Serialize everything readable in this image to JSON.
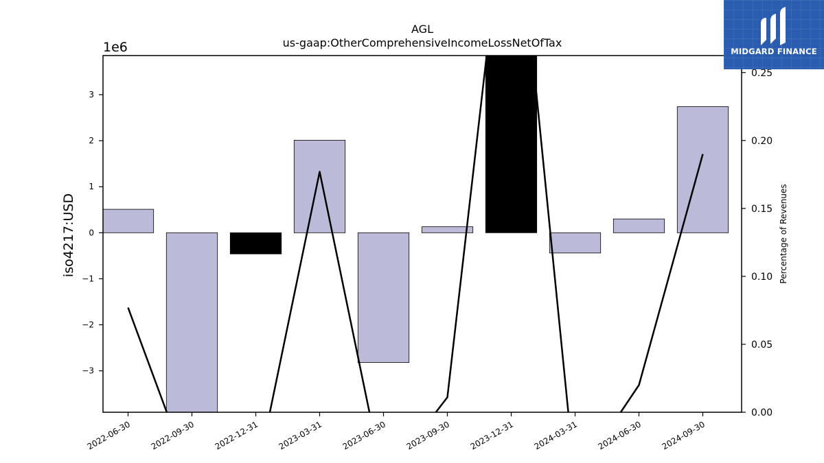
{
  "logo": {
    "text": "MIDGARD FINANCE"
  },
  "chart_data": {
    "type": "bar",
    "title": "AGL",
    "subtitle": "us-gaap:OtherComprehensiveIncomeLossNetOfTax",
    "ylabel": "iso4217:USD",
    "y2label": "Percentage of Revenues",
    "offset_text": "1e6",
    "categories": [
      "2022-06-30",
      "2022-09-30",
      "2022-12-31",
      "2023-03-31",
      "2023-06-30",
      "2023-09-30",
      "2023-12-31",
      "2024-03-31",
      "2024-06-30",
      "2024-09-30"
    ],
    "series": [
      {
        "values": [
          510000,
          -4500000,
          -460000,
          2010000,
          -2820000,
          130000,
          4200000,
          -440000,
          300000,
          2740000
        ],
        "colors": [
          "#bcbad9",
          "#bcbad9",
          "#000000",
          "#bcbad9",
          "#bcbad9",
          "#bcbad9",
          "#000000",
          "#bcbad9",
          "#bcbad9",
          "#bcbad9"
        ]
      },
      {
        "type": "line",
        "axis": "right",
        "values": [
          0.077,
          -0.05,
          -0.05,
          0.177,
          -0.05,
          0.011,
          0.42,
          -0.05,
          0.02,
          0.19
        ]
      }
    ],
    "ylim": [
      -3900000,
      3850000
    ],
    "y2lim": [
      0.0,
      0.2625
    ],
    "yticks": [
      -3000000,
      -2000000,
      -1000000,
      0,
      1000000,
      2000000,
      3000000
    ],
    "ytick_labels": [
      "−3",
      "−2",
      "−1",
      "0",
      "1",
      "2",
      "3"
    ],
    "y2ticks": [
      0.0,
      0.05,
      0.1,
      0.15,
      0.2,
      0.25
    ],
    "y2tick_labels": [
      "0.00",
      "0.05",
      "0.10",
      "0.15",
      "0.20",
      "0.25"
    ],
    "grid": false
  }
}
